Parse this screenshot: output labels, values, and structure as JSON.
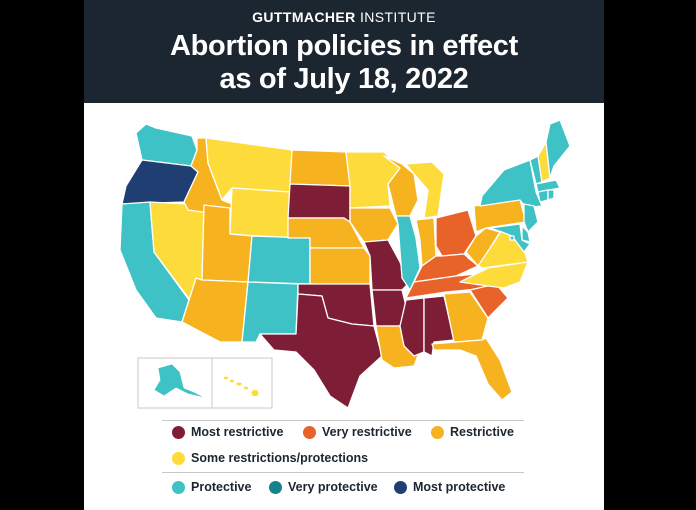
{
  "header": {
    "brand_bold": "GUTTMACHER",
    "brand_rest": " INSTITUTE",
    "title_line1": "Abortion policies in effect",
    "title_line2": "as of July 18, 2022"
  },
  "colors": {
    "most_restrictive": "#7e1d36",
    "very_restrictive": "#e8632a",
    "restrictive": "#f6b21f",
    "some": "#fcdb3a",
    "protective": "#3ec2c6",
    "very_protective": "#15838b",
    "most_protective": "#1f3f73"
  },
  "legend": [
    {
      "key": "most_restrictive",
      "label": "Most restrictive"
    },
    {
      "key": "very_restrictive",
      "label": "Very restrictive"
    },
    {
      "key": "restrictive",
      "label": "Restrictive"
    },
    {
      "key": "some",
      "label": "Some restrictions/protections"
    },
    {
      "key": "protective",
      "label": "Protective"
    },
    {
      "key": "very_protective",
      "label": "Very protective"
    },
    {
      "key": "most_protective",
      "label": "Most protective"
    }
  ],
  "states": {
    "WA": "protective",
    "OR": "most_protective",
    "CA": "protective",
    "NV": "some",
    "ID": "restrictive",
    "MT": "some",
    "WY": "some",
    "UT": "restrictive",
    "AZ": "restrictive",
    "CO": "protective",
    "NM": "protective",
    "ND": "restrictive",
    "SD": "most_restrictive",
    "NE": "restrictive",
    "KS": "restrictive",
    "OK": "most_restrictive",
    "TX": "most_restrictive",
    "MN": "some",
    "IA": "restrictive",
    "MO": "most_restrictive",
    "AR": "most_restrictive",
    "LA": "restrictive",
    "WI": "restrictive",
    "IL": "protective",
    "MI": "some",
    "IN": "restrictive",
    "OH": "very_restrictive",
    "KY": "very_restrictive",
    "TN": "very_restrictive",
    "MS": "most_restrictive",
    "AL": "most_restrictive",
    "GA": "restrictive",
    "FL": "restrictive",
    "SC": "very_restrictive",
    "NC": "some",
    "VA": "some",
    "WV": "restrictive",
    "PA": "restrictive",
    "NY": "protective",
    "VT": "protective",
    "NH": "some",
    "ME": "protective",
    "MA": "protective",
    "CT": "protective",
    "RI": "protective",
    "NJ": "protective",
    "DE": "protective",
    "MD": "protective",
    "DC": "protective",
    "AK": "protective",
    "HI": "some"
  }
}
